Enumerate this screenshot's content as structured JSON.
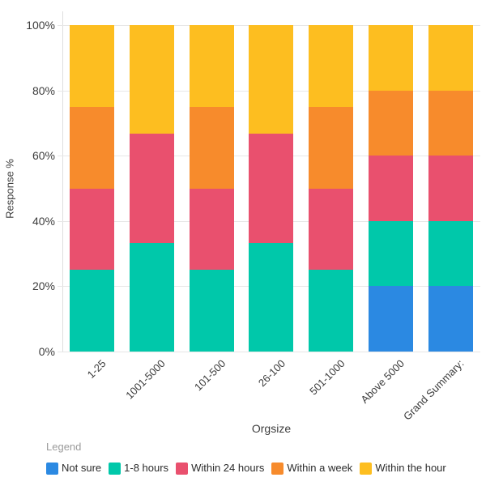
{
  "chart_data": {
    "type": "bar",
    "stacked": true,
    "title": "",
    "xlabel": "Orgsize",
    "ylabel": "Response %",
    "ylim": [
      0,
      100
    ],
    "y_ticks": [
      "0%",
      "20%",
      "40%",
      "60%",
      "80%",
      "100%"
    ],
    "grid": "horizontal",
    "legend_position": "bottom",
    "categories": [
      "1-25",
      "1001-5000",
      "101-500",
      "26-100",
      "501-1000",
      "Above 5000",
      "Grand Summary:"
    ],
    "series": [
      {
        "name": "Not sure",
        "color": "#2b89e2",
        "values": [
          0,
          0,
          0,
          0,
          0,
          20,
          20
        ]
      },
      {
        "name": "1-8 hours",
        "color": "#00c8aa",
        "values": [
          25,
          33.33,
          25,
          33.33,
          25,
          20,
          20
        ]
      },
      {
        "name": "Within 24 hours",
        "color": "#e9506e",
        "values": [
          25,
          33.34,
          25,
          33.34,
          25,
          20,
          20
        ]
      },
      {
        "name": "Within a week",
        "color": "#f78b2c",
        "values": [
          25,
          0,
          25,
          0,
          25,
          20,
          20
        ]
      },
      {
        "name": "Within the hour",
        "color": "#fdbe20",
        "values": [
          25,
          33.33,
          25,
          33.33,
          25,
          20,
          20
        ]
      }
    ]
  },
  "legend": {
    "title": "Legend"
  }
}
